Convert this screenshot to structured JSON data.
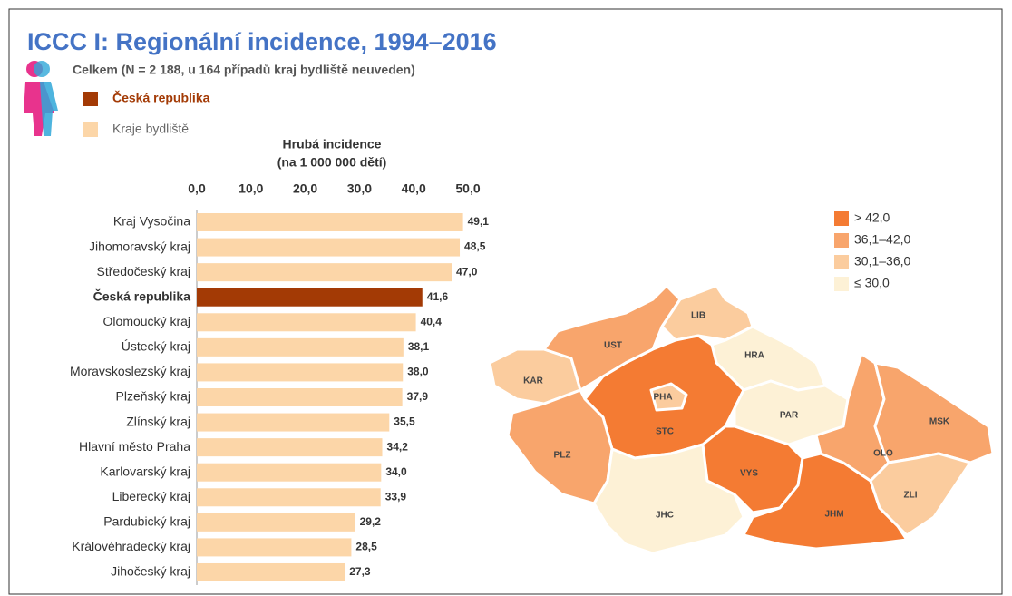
{
  "chart_data": {
    "type": "hbar",
    "title": "ICCC I: Regionální incidence, 1994–2016",
    "subtitle": "Celkem (N = 2 188, u 164 případů kraj bydliště neuveden)",
    "legend": [
      {
        "label": "Česká republika",
        "color": "#a33a05"
      },
      {
        "label": "Kraje bydliště",
        "color": "#fcd6a8"
      }
    ],
    "x_label": [
      "Hrubá incidence",
      "(na 1 000 000 dětí)"
    ],
    "categories": [
      "Kraj Vysočina",
      "Jihomoravský kraj",
      "Středočeský kraj",
      "Česká republika",
      "Olomoucký kraj",
      "Ústecký kraj",
      "Moravskoslezský kraj",
      "Plzeňský kraj",
      "Zlínský kraj",
      "Hlavní město Praha",
      "Karlovarský kraj",
      "Liberecký kraj",
      "Pardubický kraj",
      "Královéhradecký kraj",
      "Jihočeský kraj"
    ],
    "values": [
      49.1,
      48.5,
      47.0,
      41.6,
      40.4,
      38.1,
      38.0,
      37.9,
      35.5,
      34.2,
      34.0,
      33.9,
      29.2,
      28.5,
      27.3
    ],
    "value_labels": [
      "49,1",
      "48,5",
      "47,0",
      "41,6",
      "40,4",
      "38,1",
      "38,0",
      "37,9",
      "35,5",
      "34,2",
      "34,0",
      "33,9",
      "29,2",
      "28,5",
      "27,3"
    ],
    "colors": [
      "#fcd6a8",
      "#fcd6a8",
      "#fcd6a8",
      "#a33a05",
      "#fcd6a8",
      "#fcd6a8",
      "#fcd6a8",
      "#fcd6a8",
      "#fcd6a8",
      "#fcd6a8",
      "#fcd6a8",
      "#fcd6a8",
      "#fcd6a8",
      "#fcd6a8",
      "#fcd6a8"
    ],
    "xlim": [
      0,
      50
    ],
    "xticks": [
      {
        "value": 0,
        "label": "0,0"
      },
      {
        "value": 10,
        "label": "10,0"
      },
      {
        "value": 20,
        "label": "20,0"
      },
      {
        "value": 30,
        "label": "30,0"
      },
      {
        "value": 40,
        "label": "40,0"
      },
      {
        "value": 50,
        "label": "50,0"
      }
    ]
  },
  "map": {
    "legend": [
      {
        "label": "> 42,0",
        "color": "#f47b33"
      },
      {
        "label": "36,1–42,0",
        "color": "#f8a56c"
      },
      {
        "label": "30,1–36,0",
        "color": "#fbcc9e"
      },
      {
        "label": "≤ 30,0",
        "color": "#fdf1d6"
      }
    ],
    "regions": [
      {
        "label": "KAR",
        "color": "#fbcc9e"
      },
      {
        "label": "UST",
        "color": "#f8a56c"
      },
      {
        "label": "LIB",
        "color": "#fbcc9e"
      },
      {
        "label": "HRA",
        "color": "#fdf1d6"
      },
      {
        "label": "STC",
        "color": "#f47b33"
      },
      {
        "label": "PHA",
        "color": "#fbcc9e"
      },
      {
        "label": "PLZ",
        "color": "#f8a56c"
      },
      {
        "label": "PAR",
        "color": "#fdf1d6"
      },
      {
        "label": "JHC",
        "color": "#fdf1d6"
      },
      {
        "label": "VYS",
        "color": "#f47b33"
      },
      {
        "label": "JHM",
        "color": "#f47b33"
      },
      {
        "label": "OLO",
        "color": "#f8a56c"
      },
      {
        "label": "MSK",
        "color": "#f8a56c"
      },
      {
        "label": "ZLI",
        "color": "#fbcc9e"
      }
    ]
  }
}
